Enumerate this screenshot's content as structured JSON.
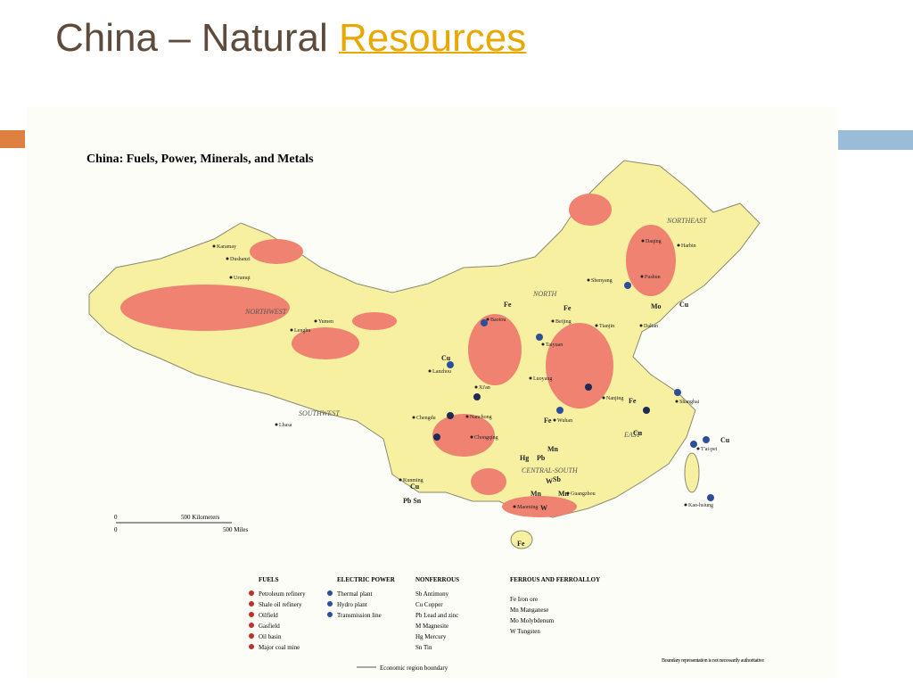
{
  "header": {
    "title": "China – Natural",
    "link": "Resources"
  },
  "map": {
    "title": "China: Fuels, Power, Minerals, and Metals",
    "regions": [
      "NORTHWEST",
      "NORTH",
      "NORTHEAST",
      "SOUTHWEST",
      "CENTRAL-SOUTH",
      "EAST"
    ],
    "cities": [
      "Karamay",
      "Dushanzi",
      "Urumqi",
      "Yumen",
      "Lenghu",
      "Lanzhou",
      "Xi'an",
      "Baotou",
      "Beijing",
      "Tianjin",
      "Dalian",
      "Shenyang",
      "Harbin",
      "Daqing",
      "Shanghai",
      "Wuhan",
      "Chengdu",
      "Chongqing",
      "Nanchong",
      "Kunming",
      "Lhasa",
      "Guangzhou",
      "Maoming",
      "T'ai-pei",
      "Kao-hsiung",
      "Taiyuan",
      "Luoyang",
      "Nanjing",
      "Fushun"
    ],
    "symbols": [
      "Fe",
      "Cu",
      "Fe",
      "Mo",
      "Mn",
      "Fe",
      "Cu",
      "Sb",
      "Mn",
      "Hg",
      "Pb",
      "W",
      "Mn",
      "W",
      "Cu",
      "Pb Sn",
      "Fe",
      "Cu",
      "Cu",
      "Fe"
    ],
    "scale": {
      "km": "500 Kilometers",
      "miles": "500 Miles",
      "zero": "0"
    },
    "note": "Boundary representation is not necessarily authoritative",
    "boundary": "Economic region boundary"
  },
  "legend": [
    {
      "heading": "FUELS",
      "items": [
        "Petroleum refinery",
        "Shale oil refinery",
        "Oilfield",
        "Gasfield",
        "Oil basin",
        "Major coal mine"
      ]
    },
    {
      "heading": "ELECTRIC POWER",
      "items": [
        "Thermal plant",
        "Hydro plant",
        "Transmission line"
      ]
    },
    {
      "heading": "NONFERROUS",
      "items": [
        "Sb Antimony",
        "Cu Copper",
        "Pb Lead and zinc",
        "M Magnesite",
        "Hg Mercury",
        "Sn Tin"
      ]
    },
    {
      "heading": "FERROUS AND FERROALLOY",
      "items": [
        "Fe Iron ore",
        "Mn Manganese",
        "Mo Molybdenum",
        "W Tungsten"
      ]
    }
  ]
}
